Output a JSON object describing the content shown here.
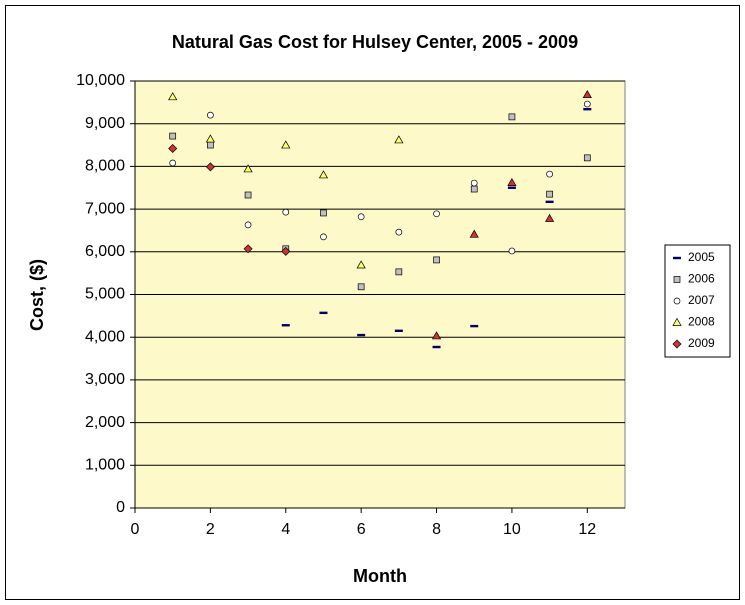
{
  "chart_data": {
    "type": "scatter",
    "title": "Natural Gas Cost for Hulsey Center, 2005 - 2009",
    "x_label": "Month",
    "y_label": "Cost, ($)",
    "x": [
      1,
      2,
      3,
      4,
      5,
      6,
      7,
      8,
      9,
      10,
      11,
      12
    ],
    "series": [
      {
        "name": "2005",
        "color": "#000066",
        "marker": "dash",
        "values": [
          null,
          null,
          null,
          4280,
          4570,
          4050,
          4150,
          3770,
          4260,
          7500,
          7170,
          9340
        ]
      },
      {
        "name": "2006",
        "color": "#c0c0c0",
        "marker": "square",
        "values": [
          8710,
          8500,
          7330,
          6070,
          6910,
          5180,
          5530,
          5810,
          7470,
          9160,
          7350,
          8200
        ]
      },
      {
        "name": "2007",
        "color": "#ffffff",
        "marker": "circle",
        "values": [
          8080,
          9200,
          6630,
          6930,
          6350,
          6820,
          6460,
          6890,
          7610,
          6020,
          7820,
          9460
        ]
      },
      {
        "name": "2008",
        "color": "#ffff66",
        "marker": "triangle",
        "values": [
          9630,
          8640,
          7940,
          8500,
          7800,
          5690,
          8620,
          4030,
          6410,
          7620,
          6780,
          9680
        ],
        "colors": [
          "#ffff66",
          "#ffff66",
          "#ffff66",
          "#ffff66",
          "#ffff66",
          "#ffff66",
          "#ffff66",
          "#cc3333",
          "#cc3333",
          "#cc3333",
          "#cc3333",
          "#cc3333"
        ]
      },
      {
        "name": "2009",
        "color": "#cc3333",
        "marker": "diamond",
        "values": [
          8420,
          7990,
          6070,
          6010,
          null,
          null,
          null,
          null,
          null,
          null,
          null,
          null
        ]
      }
    ],
    "xlim": [
      0,
      13
    ],
    "xticks": [
      0,
      2,
      4,
      6,
      8,
      10,
      12
    ],
    "ylim": [
      0,
      10000
    ],
    "yticks": [
      0,
      {
        "value": 1000,
        "label": "1,000"
      },
      {
        "value": 2000,
        "label": "2,000"
      },
      {
        "value": 3000,
        "label": "3,000"
      },
      {
        "value": 4000,
        "label": "4,000"
      },
      {
        "value": 5000,
        "label": "5,000"
      },
      {
        "value": 6000,
        "label": "6,000"
      },
      {
        "value": 7000,
        "label": "7,000"
      },
      {
        "value": 8000,
        "label": "8,000"
      },
      {
        "value": 9000,
        "label": "9,000"
      },
      {
        "value": 10000,
        "label": "10,000"
      }
    ],
    "grid": true,
    "legend": "right",
    "plot_background": "#fdf9c9"
  }
}
